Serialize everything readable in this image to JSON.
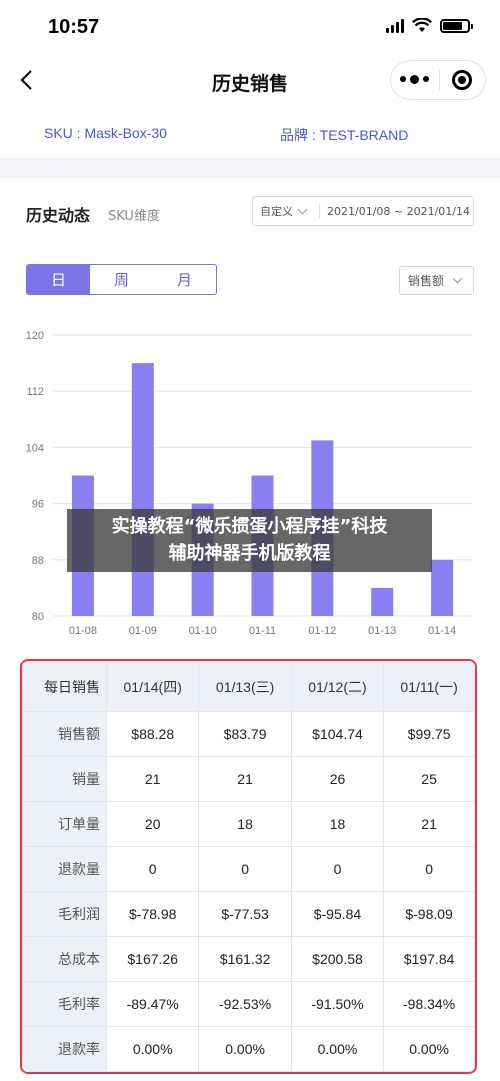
{
  "status": {
    "time": "10:57"
  },
  "nav": {
    "title": "历史销售"
  },
  "info": {
    "sku": "SKU : Mask-Box-30",
    "brand": "品牌 : TEST-BRAND"
  },
  "section": {
    "title": "历史动态",
    "subtitle": "SKU维度",
    "date_mode": "自定义",
    "date_range": "2021/01/08 ~ 2021/01/14"
  },
  "period_tabs": [
    {
      "label": "日",
      "active": true
    },
    {
      "label": "周",
      "active": false
    },
    {
      "label": "月",
      "active": false
    }
  ],
  "metric_select": "销售额",
  "colors": {
    "accent": "#7b73e6",
    "table_border": "#e33a4a",
    "brand_text": "#4a57c8"
  },
  "chart_data": {
    "type": "bar",
    "categories": [
      "01-08",
      "01-09",
      "01-10",
      "01-11",
      "01-12",
      "01-13",
      "01-14"
    ],
    "values": [
      100,
      116,
      96,
      100,
      105,
      84,
      88
    ],
    "ylim": [
      80,
      120
    ],
    "yticks": [
      80,
      88,
      96,
      104,
      112,
      120
    ],
    "grid": true,
    "color": "#8a7ff0"
  },
  "table": {
    "header": [
      "每日销售",
      "01/14(四)",
      "01/13(三)",
      "01/12(二)",
      "01/11(一)"
    ],
    "rows": [
      [
        "销售额",
        "$88.28",
        "$83.79",
        "$104.74",
        "$99.75"
      ],
      [
        "销量",
        "21",
        "21",
        "26",
        "25"
      ],
      [
        "订单量",
        "20",
        "18",
        "18",
        "21"
      ],
      [
        "退款量",
        "0",
        "0",
        "0",
        "0"
      ],
      [
        "毛利润",
        "$-78.98",
        "$-77.53",
        "$-95.84",
        "$-98.09"
      ],
      [
        "总成本",
        "$167.26",
        "$161.32",
        "$200.58",
        "$197.84"
      ],
      [
        "毛利率",
        "-89.47%",
        "-92.53%",
        "-91.50%",
        "-98.34%"
      ],
      [
        "退款率",
        "0.00%",
        "0.00%",
        "0.00%",
        "0.00%"
      ]
    ]
  },
  "banner": {
    "line1": "实操教程“微乐掼蛋小程序挂”科技",
    "line2": "辅助神器手机版教程"
  }
}
